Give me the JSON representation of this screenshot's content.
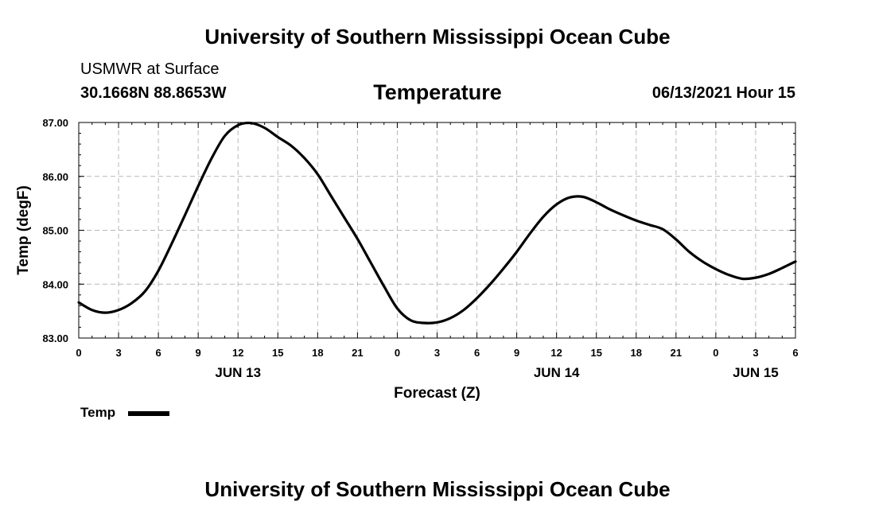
{
  "header": {
    "top_title": "University of Southern Mississippi Ocean Cube",
    "station": "USMWR at Surface",
    "coords": "30.1668N  88.8653W",
    "datetime": "06/13/2021 Hour 15"
  },
  "footer": {
    "bottom_title": "University of Southern Mississippi Ocean Cube"
  },
  "legend": {
    "label": "Temp"
  },
  "chart_data": {
    "type": "line",
    "title": "Temperature",
    "xlabel": "Forecast (Z)",
    "ylabel": "Temp (degF)",
    "ylim": [
      83.0,
      87.0
    ],
    "xlim": [
      0,
      54
    ],
    "grid": true,
    "legend_position": "bottom-left",
    "x_tick_labels": [
      "0",
      "3",
      "6",
      "9",
      "12",
      "15",
      "18",
      "21",
      "0",
      "3",
      "6",
      "9",
      "12",
      "15",
      "18",
      "21",
      "0",
      "3",
      "6"
    ],
    "y_tick_labels": [
      "83.00",
      "84.00",
      "85.00",
      "86.00",
      "87.00"
    ],
    "date_labels": [
      {
        "label": "JUN 13",
        "at": 12
      },
      {
        "label": "JUN 14",
        "at": 36
      },
      {
        "label": "JUN 15",
        "at": 51
      }
    ],
    "series": [
      {
        "name": "Temp",
        "color": "#000000",
        "x": [
          0,
          1,
          2,
          3,
          4,
          5,
          6,
          7,
          8,
          9,
          10,
          11,
          12,
          13,
          14,
          15,
          16,
          17,
          18,
          19,
          20,
          21,
          22,
          23,
          24,
          25,
          26,
          27,
          28,
          29,
          30,
          31,
          32,
          33,
          34,
          35,
          36,
          37,
          38,
          39,
          40,
          41,
          42,
          43,
          44,
          45,
          46,
          47,
          48,
          49,
          50,
          51,
          52,
          53,
          54
        ],
        "values": [
          83.66,
          83.52,
          83.47,
          83.52,
          83.65,
          83.87,
          84.25,
          84.75,
          85.28,
          85.82,
          86.33,
          86.75,
          86.95,
          86.99,
          86.9,
          86.73,
          86.57,
          86.34,
          86.04,
          85.64,
          85.24,
          84.84,
          84.4,
          83.96,
          83.55,
          83.33,
          83.28,
          83.29,
          83.37,
          83.52,
          83.74,
          84.0,
          84.29,
          84.6,
          84.94,
          85.25,
          85.48,
          85.61,
          85.62,
          85.52,
          85.39,
          85.28,
          85.18,
          85.1,
          85.02,
          84.83,
          84.6,
          84.42,
          84.28,
          84.17,
          84.1,
          84.12,
          84.19,
          84.3,
          84.42
        ]
      }
    ]
  }
}
